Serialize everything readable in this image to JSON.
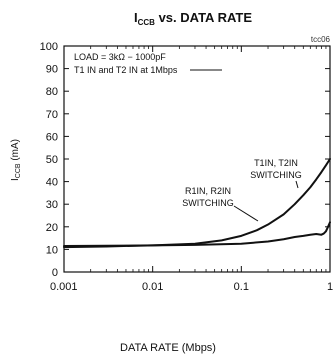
{
  "chart_data": {
    "type": "line",
    "title": "I",
    "title_sub": "CCB",
    "title_rest": " vs. DATA RATE",
    "figure_code": "tcc06",
    "xlabel": "DATA RATE (Mbps)",
    "ylabel_main": "I",
    "ylabel_sub": "CCB",
    "ylabel_unit": " (mA)",
    "x_scale": "log",
    "xlim": [
      0.001,
      1
    ],
    "ylim": [
      0,
      100
    ],
    "x_ticks": [
      0.001,
      0.01,
      0.1,
      1
    ],
    "x_tick_labels": [
      "0.001",
      "0.01",
      "0.1",
      "1"
    ],
    "y_ticks": [
      0,
      10,
      20,
      30,
      40,
      50,
      60,
      70,
      80,
      90,
      100
    ],
    "y_tick_labels": [
      "0",
      "10",
      "20",
      "30",
      "40",
      "50",
      "60",
      "70",
      "80",
      "90",
      "100"
    ],
    "grid": false,
    "legend_text": [
      "LOAD = 3kΩ − 1000pF",
      "T1 IN and T2 IN at 1Mbps"
    ],
    "annotations": [
      {
        "lines": [
          "T1IN, T2IN",
          "SWITCHING"
        ]
      },
      {
        "lines": [
          "R1IN, R2IN",
          "SWITCHING"
        ]
      }
    ],
    "series": [
      {
        "name": "T1IN, T2IN SWITCHING",
        "x": [
          0.001,
          0.003,
          0.01,
          0.03,
          0.06,
          0.1,
          0.15,
          0.2,
          0.3,
          0.4,
          0.5,
          0.6,
          0.7,
          0.8,
          0.9,
          1.0
        ],
        "y": [
          11,
          11.3,
          11.8,
          12.5,
          14,
          16,
          18.5,
          21,
          25.5,
          30,
          34,
          37.5,
          41,
          44.2,
          47.2,
          50
        ]
      },
      {
        "name": "R1IN, R2IN SWITCHING",
        "x": [
          0.001,
          0.003,
          0.01,
          0.03,
          0.1,
          0.2,
          0.3,
          0.4,
          0.5,
          0.6,
          0.7,
          0.8,
          0.85,
          0.9,
          0.95,
          1.0
        ],
        "y": [
          11.5,
          11.6,
          11.8,
          12,
          12.5,
          13.5,
          14.5,
          15.5,
          16,
          16.5,
          16.8,
          16.5,
          17,
          18,
          20,
          22
        ]
      }
    ]
  }
}
